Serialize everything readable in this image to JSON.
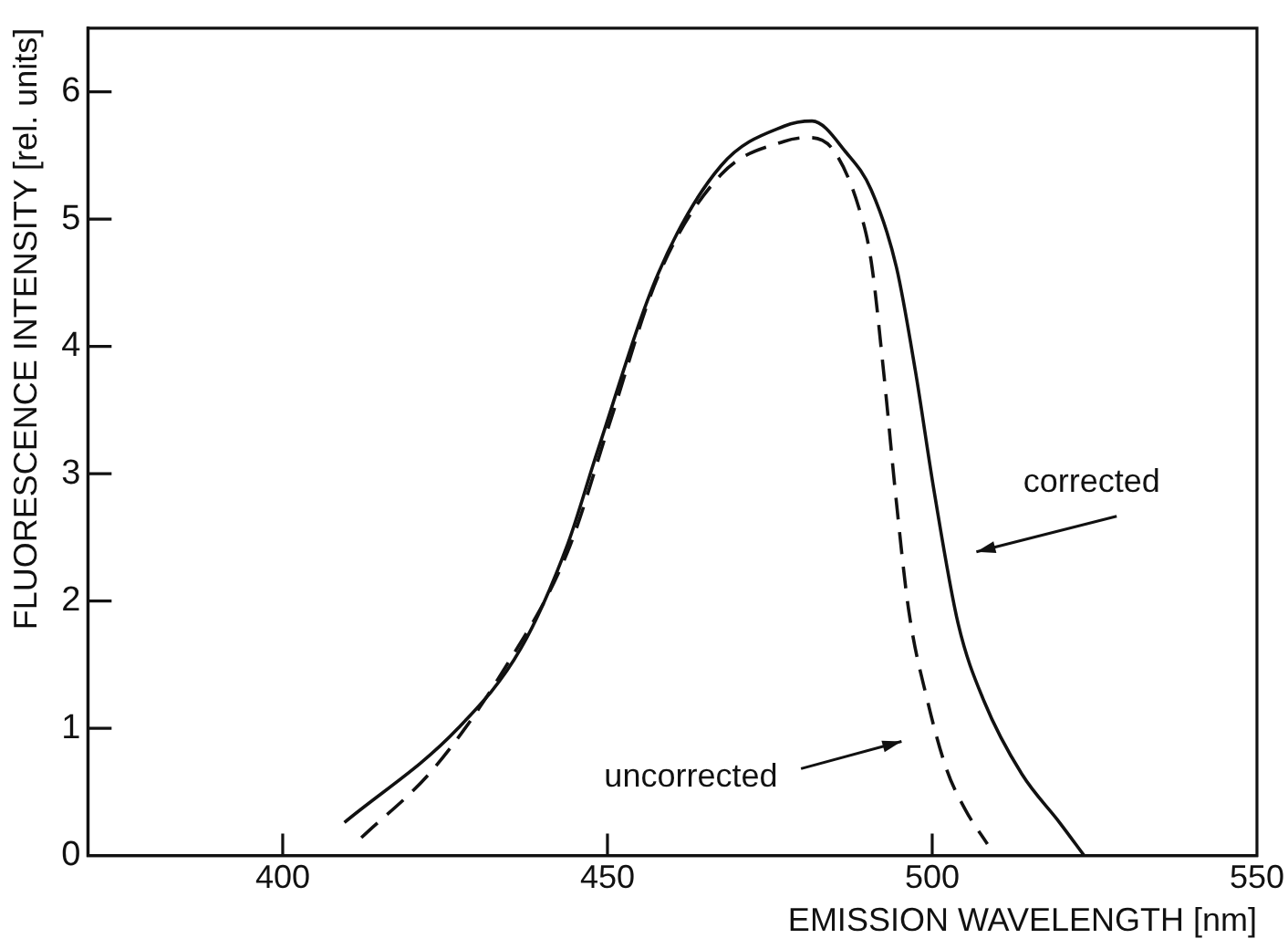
{
  "chart_data": {
    "type": "line",
    "xlabel": "EMISSION WAVELENGTH [nm]",
    "ylabel": "FLUORESCENCE INTENSITY [rel. units]",
    "xlim": [
      370,
      550
    ],
    "xticks": [
      400,
      450,
      500,
      550
    ],
    "ylim": [
      0,
      6.5
    ],
    "yticks": [
      0,
      1,
      2,
      3,
      4,
      5,
      6
    ],
    "grid": false,
    "legend": false,
    "marker": "none",
    "series": [
      {
        "color": "#111111",
        "line_style": "solid",
        "x": [
          409.5,
          427,
          436.7,
          443.9,
          448.3,
          457.8,
          467.5,
          477.2,
          481.5,
          486.8,
          490.6,
          494.5,
          497.4,
          500.3,
          504,
          508,
          513.8,
          519.6,
          523.4
        ],
        "values": [
          0.26,
          1.0,
          1.63,
          2.45,
          3.15,
          4.57,
          5.42,
          5.73,
          5.77,
          5.52,
          5.23,
          4.62,
          3.81,
          2.86,
          1.82,
          1.21,
          0.64,
          0.26,
          0
        ]
      },
      {
        "color": "#111111",
        "line_style": "dashed",
        "x": [
          412.1,
          423.2,
          433.8,
          443.9,
          450.3,
          457.8,
          467.5,
          477.2,
          481,
          484.8,
          488.7,
          490.6,
          492.5,
          494.5,
          496.4,
          499.3,
          502.2,
          505.1,
          508.5
        ],
        "values": [
          0.14,
          0.68,
          1.44,
          2.39,
          3.39,
          4.55,
          5.35,
          5.61,
          5.64,
          5.54,
          5.09,
          4.67,
          3.81,
          2.77,
          1.92,
          1.21,
          0.68,
          0.36,
          0.09
        ]
      }
    ],
    "annotations": [
      "corrected",
      "uncorrected"
    ]
  }
}
